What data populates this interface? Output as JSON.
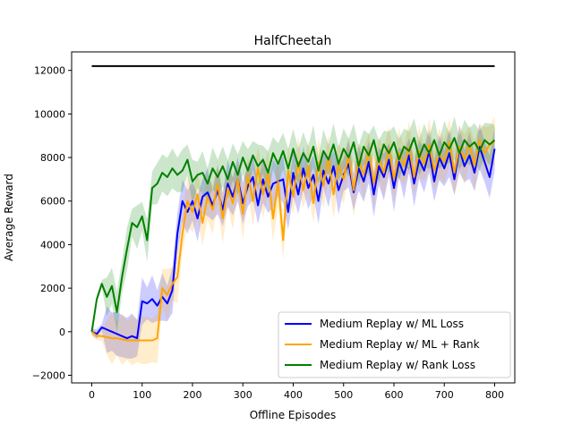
{
  "chart_data": {
    "type": "line",
    "title": "HalfCheetah",
    "xlabel": "Offline Episodes",
    "ylabel": "Average Reward",
    "xlim": [
      -40,
      840
    ],
    "ylim": [
      -2350,
      12850
    ],
    "xticks": [
      0,
      100,
      200,
      300,
      400,
      500,
      600,
      700,
      800
    ],
    "yticks": [
      -2000,
      0,
      2000,
      4000,
      6000,
      8000,
      10000,
      12000
    ],
    "grid": false,
    "legend_position": "lower-right",
    "reference_line": {
      "y": 12200,
      "x_range": [
        0,
        800
      ],
      "color": "#000000"
    },
    "x": [
      0,
      10,
      20,
      30,
      40,
      50,
      60,
      70,
      80,
      90,
      100,
      110,
      120,
      130,
      140,
      150,
      160,
      170,
      180,
      190,
      200,
      210,
      220,
      230,
      240,
      250,
      260,
      270,
      280,
      290,
      300,
      310,
      320,
      330,
      340,
      350,
      360,
      370,
      380,
      390,
      400,
      410,
      420,
      430,
      440,
      450,
      460,
      470,
      480,
      490,
      500,
      510,
      520,
      530,
      540,
      550,
      560,
      570,
      580,
      590,
      600,
      610,
      620,
      630,
      640,
      650,
      660,
      670,
      680,
      690,
      700,
      710,
      720,
      730,
      740,
      750,
      760,
      770,
      780,
      790,
      800
    ],
    "series": [
      {
        "name": "Medium Replay w/ ML Loss",
        "color": "#0000ff",
        "std": 1100,
        "values": [
          0,
          -100,
          200,
          100,
          0,
          -100,
          -200,
          -300,
          -200,
          -300,
          1400,
          1300,
          1500,
          1200,
          1600,
          1300,
          1900,
          4500,
          6000,
          5500,
          6000,
          5200,
          6200,
          6400,
          5800,
          6500,
          5600,
          6800,
          6200,
          7000,
          5900,
          6700,
          7100,
          5800,
          7000,
          6200,
          6800,
          6900,
          7000,
          5500,
          7300,
          6300,
          7500,
          6600,
          7200,
          6000,
          7400,
          6800,
          7600,
          6500,
          7200,
          7700,
          6400,
          7500,
          6900,
          7800,
          6300,
          7600,
          7100,
          7900,
          6600,
          7800,
          7200,
          8100,
          6800,
          7900,
          7400,
          8300,
          6900,
          8000,
          7500,
          8200,
          7000,
          8400,
          7600,
          8100,
          7300,
          8500,
          7800,
          7100,
          8400
        ]
      },
      {
        "name": "Medium Replay w/ ML + Rank",
        "color": "#ffa500",
        "std": 1200,
        "values": [
          0,
          -200,
          -200,
          -250,
          -300,
          -300,
          -350,
          -400,
          -400,
          -400,
          -400,
          -400,
          -400,
          -300,
          2000,
          1700,
          2200,
          2500,
          4500,
          6000,
          5500,
          6300,
          5000,
          6200,
          5600,
          6800,
          5200,
          6600,
          5900,
          7000,
          5400,
          7200,
          6000,
          7500,
          6300,
          7300,
          5200,
          6900,
          4200,
          7400,
          6200,
          7800,
          6500,
          7600,
          5900,
          7800,
          6700,
          8000,
          6300,
          7700,
          7000,
          8100,
          6500,
          7900,
          7200,
          8300,
          6800,
          8000,
          7300,
          8400,
          7000,
          8200,
          7600,
          8500,
          7100,
          8300,
          7700,
          8600,
          7400,
          8200,
          7800,
          8700,
          7300,
          8500,
          7900,
          8600,
          7600,
          8800,
          8200,
          8600,
          8700
        ]
      },
      {
        "name": "Medium Replay w/ Rank Loss",
        "color": "#008000",
        "std": 1000,
        "values": [
          0,
          1500,
          2200,
          1600,
          2100,
          900,
          2500,
          3800,
          5000,
          4800,
          5300,
          4200,
          6600,
          6800,
          7300,
          7100,
          7500,
          7200,
          7400,
          7900,
          6900,
          7200,
          7300,
          6800,
          7500,
          7100,
          7600,
          7000,
          7800,
          7200,
          8000,
          7400,
          8100,
          7600,
          7900,
          7300,
          8200,
          7700,
          8300,
          7500,
          8400,
          7600,
          8200,
          7800,
          8500,
          7400,
          8300,
          7900,
          8600,
          7700,
          8400,
          8000,
          8700,
          7600,
          8500,
          8100,
          8800,
          7800,
          8600,
          8200,
          8700,
          7900,
          8500,
          8300,
          8900,
          8000,
          8600,
          8200,
          8800,
          8100,
          8700,
          8400,
          8900,
          8200,
          8800,
          8500,
          8700,
          8300,
          8800,
          8600,
          8800
        ]
      }
    ]
  }
}
